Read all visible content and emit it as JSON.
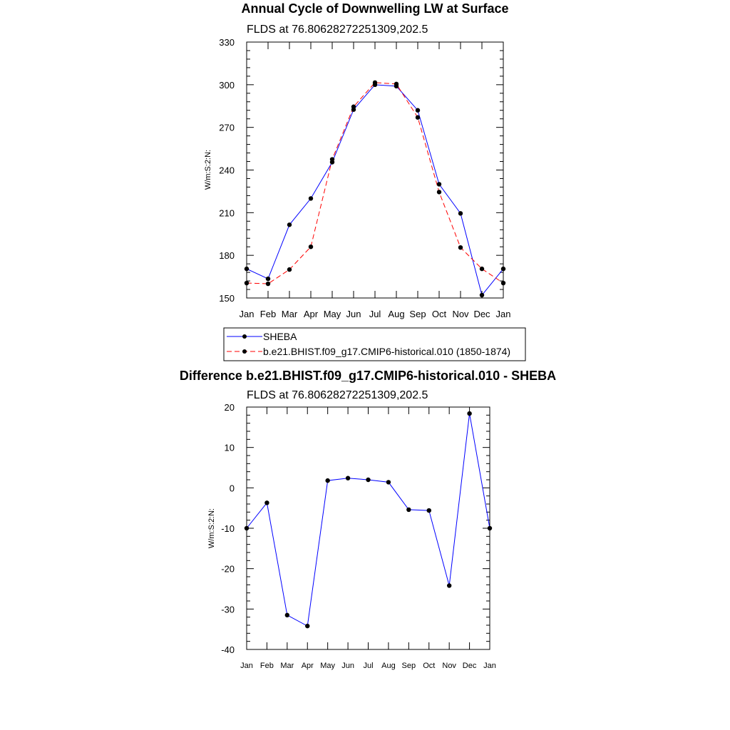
{
  "chart_data": [
    {
      "type": "line",
      "title": "Annual Cycle of Downwelling LW at Surface",
      "subtitle": "FLDS at 76.80628272251309,202.5",
      "ylabel": "W/m:S:2:N:",
      "xlabel": "",
      "categories": [
        "Jan",
        "Feb",
        "Mar",
        "Apr",
        "May",
        "Jun",
        "Jul",
        "Aug",
        "Sep",
        "Oct",
        "Nov",
        "Dec",
        "Jan"
      ],
      "ylim": [
        150,
        330
      ],
      "yticks": [
        150,
        180,
        210,
        240,
        270,
        300,
        330
      ],
      "yticklabels": [
        "150",
        "180",
        "210",
        "240",
        "270",
        "300",
        "330"
      ],
      "grid": false,
      "legend": "bottom",
      "series": [
        {
          "name": "SHEBA",
          "color": "#0000ff",
          "dash": "solid",
          "values": [
            170.5,
            163.5,
            201.5,
            220,
            245.5,
            282.5,
            300,
            299,
            282,
            230,
            209.5,
            152,
            170.5
          ]
        },
        {
          "name": "b.e21.BHIST.f09_g17.CMIP6-historical.010 (1850-1874)",
          "color": "#ff0000",
          "dash": "dashed",
          "values": [
            160.5,
            160,
            170,
            186,
            247.5,
            284.5,
            301.5,
            300.5,
            277,
            224.5,
            185.5,
            170.5,
            160.5
          ]
        }
      ]
    },
    {
      "type": "line",
      "title": "Difference b.e21.BHIST.f09_g17.CMIP6-historical.010 - SHEBA",
      "subtitle": "FLDS at 76.80628272251309,202.5",
      "ylabel": "W/m:S:2:N:",
      "xlabel": "",
      "categories": [
        "Jan",
        "Feb",
        "Mar",
        "Apr",
        "May",
        "Jun",
        "Jul",
        "Aug",
        "Sep",
        "Oct",
        "Nov",
        "Dec",
        "Jan"
      ],
      "ylim": [
        -40,
        20
      ],
      "yticks": [
        -40,
        -30,
        -20,
        -10,
        0,
        10,
        20
      ],
      "yticklabels": [
        "-40",
        "-30",
        "-20",
        "-10",
        "0",
        "10",
        "20"
      ],
      "grid": false,
      "series": [
        {
          "color": "#0000ff",
          "dash": "solid",
          "values": [
            -10,
            -3.7,
            -31.5,
            -34.2,
            1.8,
            2.4,
            2.0,
            1.4,
            -5.4,
            -5.6,
            -24.2,
            18.4,
            -10
          ]
        }
      ]
    }
  ]
}
